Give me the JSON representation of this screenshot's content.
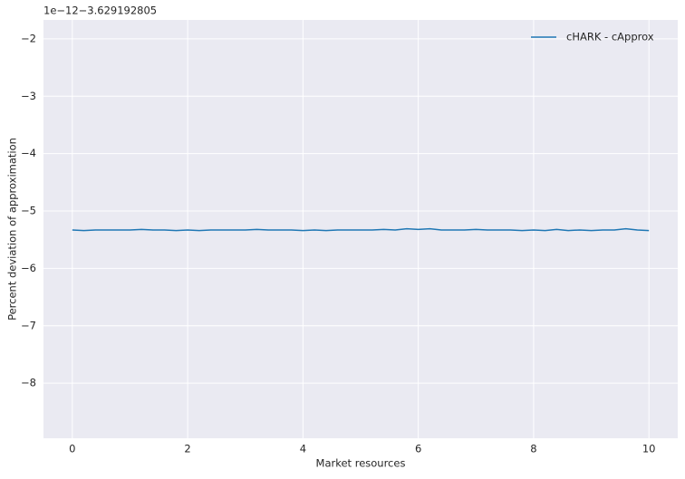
{
  "chart_data": {
    "type": "line",
    "offset_label": "1e−12−3.629192805",
    "xlabel": "Market resources",
    "ylabel": "Percent deviation of approximation",
    "x": [
      0,
      0.2,
      0.4,
      0.6,
      0.8,
      1,
      1.2,
      1.4,
      1.6,
      1.8,
      2,
      2.2,
      2.4,
      2.6,
      2.8,
      3,
      3.2,
      3.4,
      3.6,
      3.8,
      4,
      4.2,
      4.4,
      4.6,
      4.8,
      5,
      5.2,
      5.4,
      5.6,
      5.8,
      6,
      6.2,
      6.4,
      6.6,
      6.8,
      7,
      7.2,
      7.4,
      7.6,
      7.8,
      8,
      8.2,
      8.4,
      8.6,
      8.8,
      9,
      9.2,
      9.4,
      9.6,
      9.8,
      10
    ],
    "series": [
      {
        "name": "cHARK - cApprox",
        "color": "#1f77b4",
        "values": [
          -5.33,
          -5.34,
          -5.33,
          -5.33,
          -5.33,
          -5.33,
          -5.32,
          -5.33,
          -5.33,
          -5.34,
          -5.33,
          -5.34,
          -5.33,
          -5.33,
          -5.33,
          -5.33,
          -5.32,
          -5.33,
          -5.33,
          -5.33,
          -5.34,
          -5.33,
          -5.34,
          -5.33,
          -5.33,
          -5.33,
          -5.33,
          -5.32,
          -5.33,
          -5.31,
          -5.32,
          -5.31,
          -5.33,
          -5.33,
          -5.33,
          -5.32,
          -5.33,
          -5.33,
          -5.33,
          -5.34,
          -5.33,
          -5.34,
          -5.32,
          -5.34,
          -5.33,
          -5.34,
          -5.33,
          -5.33,
          -5.31,
          -5.33,
          -5.34
        ]
      }
    ],
    "xlim": [
      -0.5,
      10.5
    ],
    "xticks": [
      0,
      2,
      4,
      6,
      8,
      10
    ],
    "ylim": [
      -8.96,
      -1.67
    ],
    "yticks": [
      {
        "value": -8,
        "label": "−8"
      },
      {
        "value": -7,
        "label": "−7"
      },
      {
        "value": -6,
        "label": "−6"
      },
      {
        "value": -5,
        "label": "−5"
      },
      {
        "value": -4,
        "label": "−4"
      },
      {
        "value": -3,
        "label": "−3"
      },
      {
        "value": -2,
        "label": "−2"
      }
    ],
    "grid": true,
    "legend": "upper right"
  }
}
